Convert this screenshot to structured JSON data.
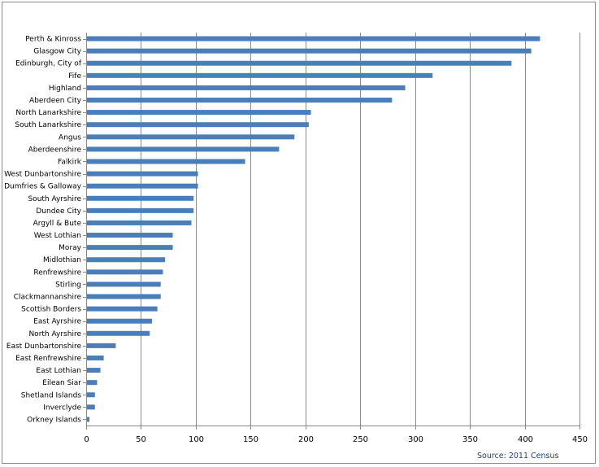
{
  "chart_data": {
    "type": "bar",
    "orientation": "horizontal",
    "categories": [
      "Perth & Kinross",
      "Glasgow City",
      "Edinburgh, City of",
      "Fife",
      "Highland",
      "Aberdeen City",
      "North Lanarkshire",
      "South Lanarkshire",
      "Angus",
      "Aberdeenshire",
      "Falkirk",
      "West Dunbartonshire",
      "Dumfries & Galloway",
      "South Ayrshire",
      "Dundee City",
      "Argyll & Bute",
      "West Lothian",
      "Moray",
      "Midlothian",
      "Renfrewshire",
      "Stirling",
      "Clackmannanshire",
      "Scottish Borders",
      "East Ayrshire",
      "North Ayrshire",
      "East Dunbartonshire",
      "East Renfrewshire",
      "East Lothian",
      "Eilean Siar",
      "Shetland Islands",
      "Inverclyde",
      "Orkney Islands"
    ],
    "values": [
      414,
      406,
      388,
      316,
      291,
      279,
      205,
      203,
      190,
      176,
      145,
      102,
      102,
      98,
      98,
      96,
      79,
      79,
      72,
      70,
      68,
      68,
      65,
      60,
      58,
      27,
      16,
      13,
      10,
      8,
      8,
      3
    ],
    "xlim": [
      0,
      450
    ],
    "x_ticks": [
      0,
      50,
      100,
      150,
      200,
      250,
      300,
      350,
      400,
      450
    ],
    "grid": "vertical",
    "bar_color": "#4a7ebb",
    "grid_color": "#8c8c8c",
    "source": "Source: 2011 Census",
    "title": "",
    "xlabel": "",
    "ylabel": ""
  }
}
